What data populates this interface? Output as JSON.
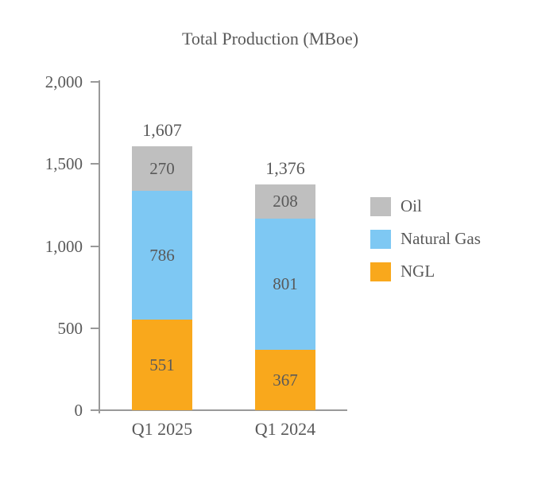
{
  "chart_data": {
    "type": "bar",
    "stacked": true,
    "title": "Total Production (MBoe)",
    "categories": [
      "Q1 2025",
      "Q1 2024"
    ],
    "series": [
      {
        "name": "NGL",
        "color": "#F9A81C",
        "values": [
          551,
          367
        ]
      },
      {
        "name": "Natural Gas",
        "color": "#7EC8F3",
        "values": [
          786,
          801
        ]
      },
      {
        "name": "Oil",
        "color": "#BFBFBF",
        "values": [
          270,
          208
        ]
      }
    ],
    "totals": [
      1607,
      1376
    ],
    "totals_formatted": [
      "1,607",
      "1,376"
    ],
    "xlabel": "",
    "ylabel": "",
    "y_axis": {
      "min": 0,
      "max": 2000,
      "tick_labels": [
        "2,000",
        "1,500",
        "1,000",
        "500",
        "0"
      ],
      "tick_values": [
        2000,
        1500,
        1000,
        500,
        0
      ]
    },
    "legend": {
      "position": "right",
      "entries": [
        "Oil",
        "Natural Gas",
        "NGL"
      ]
    },
    "grid": false,
    "colors": {
      "text": "#595959",
      "axis": "#999999",
      "background": "#FFFFFF"
    }
  }
}
